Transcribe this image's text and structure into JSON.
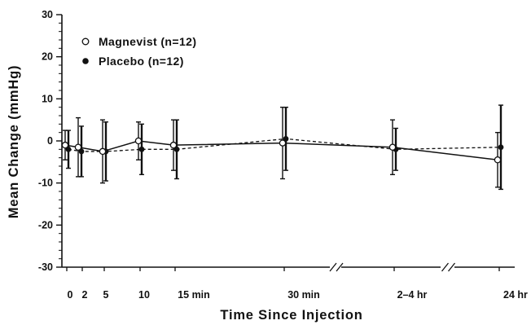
{
  "chart_data": {
    "type": "line",
    "title": "",
    "xlabel": "Time Since Injection",
    "ylabel": "Mean Change (mmHg)",
    "ylim": [
      -30,
      30
    ],
    "y_ticks": [
      "30",
      "20",
      "10",
      "0",
      "-10",
      "-20",
      "-30"
    ],
    "y_tick_values": [
      30,
      20,
      10,
      0,
      -10,
      -20,
      -30
    ],
    "categories": [
      "0",
      "2",
      "5",
      "10",
      "15 min",
      "30 min",
      "2-4 hr",
      "24 hr"
    ],
    "axis_breaks": [
      "between 30 min and 2-4 hr",
      "between 2-4 hr and 24 hr"
    ],
    "grid": false,
    "legend_position": "top-left",
    "series": [
      {
        "name": "Magnevist (n=12)",
        "marker": "open-circle",
        "line_style": "solid",
        "values": [
          -1,
          -1.5,
          -2.5,
          0,
          -1,
          -0.5,
          -1.5,
          -4.5
        ],
        "error": [
          3.5,
          7,
          7.5,
          4.5,
          6,
          8.5,
          6.5,
          6.5
        ]
      },
      {
        "name": "Placebo (n=12)",
        "marker": "filled-circle",
        "line_style": "dashed",
        "values": [
          -2,
          -2.5,
          -2.5,
          -2,
          -2,
          0.5,
          -2,
          -1.5
        ],
        "error": [
          4.5,
          6,
          7,
          6,
          7,
          7.5,
          5,
          10
        ]
      }
    ]
  }
}
